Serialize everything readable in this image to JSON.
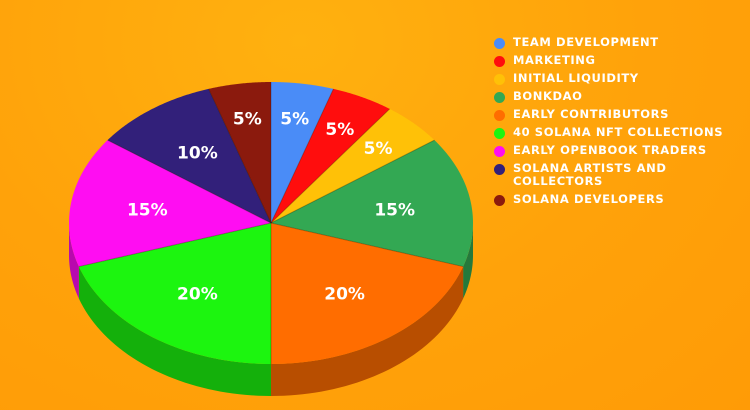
{
  "chart_data": {
    "type": "pie",
    "style": "3d",
    "categories": [
      "TEAM DEVELOPMENT",
      "MARKETING",
      "INITIAL LIQUIDITY",
      "BONKDAO",
      "EARLY CONTRIBUTORS",
      "40 SOLANA NFT COLLECTIONS",
      "EARLY OPENBOOK TRADERS",
      "SOLANA ARTISTS AND COLLECTORS",
      "SOLANA DEVELOPERS"
    ],
    "values": [
      5,
      5,
      5,
      15,
      20,
      20,
      15,
      10,
      5
    ],
    "value_labels": [
      "5%",
      "5%",
      "5%",
      "15%",
      "20%",
      "20%",
      "15%",
      "10%",
      "5%"
    ],
    "colors": [
      "#4a8cf7",
      "#ff0d0d",
      "#ffc107",
      "#33a853",
      "#ff6d00",
      "#1cf50f",
      "#ff0df2",
      "#32207a",
      "#8b1a0d"
    ],
    "legend_position": "right",
    "title": "",
    "grid": false
  }
}
